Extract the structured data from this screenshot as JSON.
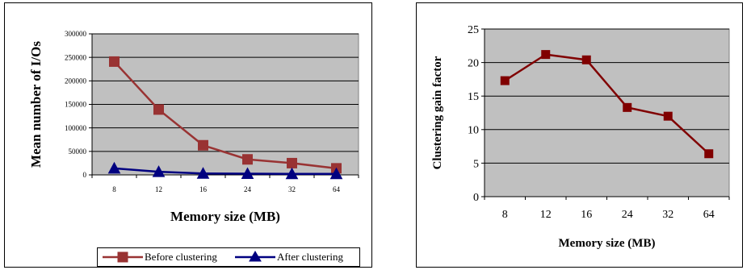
{
  "chart_data": [
    {
      "type": "line",
      "title": "",
      "xlabel": "Memory size (MB)",
      "ylabel": "Mean number of I/Os",
      "categories": [
        "8",
        "12",
        "16",
        "24",
        "32",
        "64"
      ],
      "ylim": [
        0,
        300000
      ],
      "yticks": [
        "0",
        "50000",
        "100000",
        "150000",
        "200000",
        "250000",
        "300000"
      ],
      "grid": true,
      "plot_background": "#c0c0c0",
      "legend_position": "bottom",
      "series": [
        {
          "name": "Before clustering",
          "color": "#993333",
          "marker": "square",
          "values": [
            241000,
            139000,
            63000,
            33000,
            25000,
            14000
          ]
        },
        {
          "name": "After clustering",
          "color": "#000080",
          "marker": "triangle",
          "values": [
            14000,
            6600,
            3100,
            2500,
            2100,
            2200
          ]
        }
      ]
    },
    {
      "type": "line",
      "title": "",
      "xlabel": "Memory size (MB)",
      "ylabel": "Clustering gain factor",
      "categories": [
        "8",
        "12",
        "16",
        "24",
        "32",
        "64"
      ],
      "ylim": [
        0,
        25
      ],
      "yticks": [
        "0",
        "5",
        "10",
        "15",
        "20",
        "25"
      ],
      "grid": true,
      "plot_background": "#c0c0c0",
      "legend_position": "none",
      "series": [
        {
          "name": "",
          "color": "#800000",
          "marker": "square",
          "values": [
            17.3,
            21.2,
            20.4,
            13.3,
            12.0,
            6.4
          ]
        }
      ]
    }
  ]
}
